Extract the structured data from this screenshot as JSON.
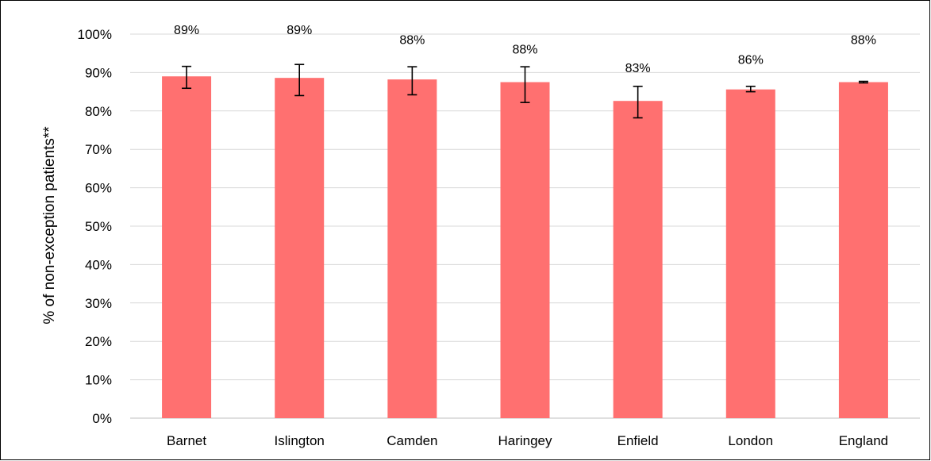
{
  "chart_data": {
    "type": "bar",
    "ylabel": "% of non-exception patients**",
    "ylim": [
      0,
      100
    ],
    "yticks": [
      0,
      10,
      20,
      30,
      40,
      50,
      60,
      70,
      80,
      90,
      100
    ],
    "ytick_labels": [
      "0%",
      "10%",
      "20%",
      "30%",
      "40%",
      "50%",
      "60%",
      "70%",
      "80%",
      "90%",
      "100%"
    ],
    "grid": true,
    "legend": "none",
    "bar_color": "#ff7070",
    "categories": [
      "Barnet",
      "Islington",
      "Camden",
      "Haringey",
      "Enfield",
      "London",
      "England"
    ],
    "values": [
      89.0,
      88.6,
      88.2,
      87.5,
      82.6,
      85.6,
      87.5
    ],
    "error_low": [
      85.9,
      84.0,
      84.2,
      82.2,
      78.2,
      85.0,
      87.3
    ],
    "error_high": [
      91.6,
      92.1,
      91.5,
      91.5,
      86.4,
      86.4,
      87.7
    ],
    "data_labels": [
      "89%",
      "89%",
      "88%",
      "88%",
      "83%",
      "86%",
      "88%"
    ],
    "data_label_values": [
      101.2,
      101.2,
      98.7,
      96.2,
      91.3,
      93.5,
      98.7
    ]
  }
}
